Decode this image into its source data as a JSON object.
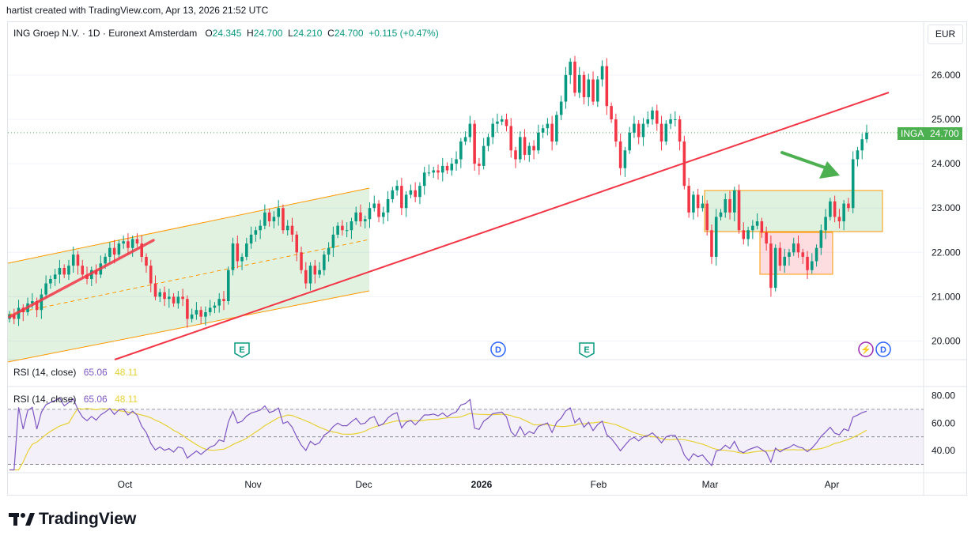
{
  "header": {
    "attribution": "hartist created with TradingView.com, Apr 13, 2026 21:52 UTC"
  },
  "legend": {
    "title": "ING Groep N.V. · 1D · Euronext Amsterdam",
    "o_label": "O",
    "o_value": "24.345",
    "h_label": "H",
    "h_value": "24.700",
    "l_label": "L",
    "l_value": "24.210",
    "c_label": "C",
    "c_value": "24.700",
    "change": "+0.115 (+0.47%)"
  },
  "currency": "EUR",
  "price_tag": {
    "ticker": "INGA",
    "price": "24.700"
  },
  "rsi_pane_collapsed": {
    "label": "RSI (14, close)",
    "rsi": "65.06",
    "ma": "48.11"
  },
  "rsi_pane": {
    "label": "RSI (14, close)",
    "rsi": "65.06",
    "ma": "48.11"
  },
  "brand": {
    "name": "TradingView"
  },
  "colors": {
    "up": "#089981",
    "down": "#f23645",
    "trendline": "#f23645",
    "channel": "#ff9800",
    "channel_fill": "#4caf50",
    "arrow": "#4caf50",
    "rsi": "#7e57c2",
    "rsi_ma": "#e6d234",
    "last_price": "#4caf50",
    "event_earnings": "#089981",
    "event_dividend": "#2962ff",
    "event_split": "#9c27b0"
  },
  "chart_data": [
    {
      "type": "candlestick",
      "title": "ING Groep N.V. · 1D · Euronext Amsterdam",
      "x_labels": [
        "Oct",
        "Nov",
        "Dec",
        "2026",
        "Feb",
        "Mar",
        "Apr"
      ],
      "y_ticks": [
        "20.000",
        "21.000",
        "22.000",
        "23.000",
        "24.000",
        "25.000",
        "26.000"
      ],
      "ylim": [
        19.6,
        27.1
      ],
      "last_price": 24.7,
      "series_close": [
        20.6,
        20.5,
        20.75,
        20.65,
        20.85,
        20.9,
        20.7,
        21.05,
        21.3,
        21.4,
        21.5,
        21.65,
        21.5,
        21.7,
        21.95,
        21.7,
        21.5,
        21.4,
        21.6,
        21.5,
        21.75,
        21.9,
        22.1,
        21.95,
        22.2,
        22.25,
        22.1,
        22.3,
        22.2,
        21.9,
        21.7,
        21.3,
        21.0,
        21.1,
        20.95,
        21.0,
        20.85,
        21.0,
        20.95,
        20.5,
        20.6,
        20.7,
        20.55,
        20.65,
        20.75,
        20.8,
        20.95,
        20.9,
        21.6,
        22.2,
        21.8,
        21.9,
        22.2,
        22.4,
        22.5,
        22.6,
        22.9,
        22.7,
        22.8,
        23.0,
        22.5,
        22.6,
        22.4,
        22.0,
        21.6,
        21.3,
        21.7,
        21.5,
        21.6,
        21.95,
        22.1,
        22.4,
        22.6,
        22.5,
        22.5,
        22.7,
        22.9,
        22.7,
        22.75,
        23.0,
        23.1,
        22.8,
        22.9,
        23.2,
        23.4,
        23.5,
        23.0,
        23.3,
        23.4,
        23.25,
        23.5,
        23.8,
        23.8,
        23.85,
        23.8,
        23.95,
        23.85,
        24.0,
        24.1,
        24.5,
        24.6,
        24.9,
        24.0,
        23.95,
        24.4,
        24.6,
        24.9,
        24.95,
        25.0,
        24.85,
        24.3,
        24.1,
        24.6,
        24.2,
        24.4,
        24.3,
        24.7,
        24.8,
        24.9,
        24.5,
        25.1,
        25.4,
        26.0,
        26.3,
        25.6,
        26.0,
        25.5,
        25.9,
        25.4,
        25.9,
        26.2,
        25.3,
        25.0,
        24.5,
        23.9,
        24.3,
        24.7,
        24.9,
        24.6,
        24.9,
        25.0,
        25.2,
        24.9,
        24.5,
        24.9,
        25.0,
        25.0,
        24.5,
        23.5,
        22.9,
        23.3,
        23.0,
        23.1,
        22.5,
        21.9,
        22.8,
        22.9,
        23.2,
        22.9,
        23.4,
        22.5,
        22.3,
        22.5,
        22.6,
        22.7,
        22.45,
        22.2,
        21.2,
        22.1,
        21.7,
        21.9,
        22.0,
        22.2,
        22.0,
        21.9,
        21.6,
        21.8,
        22.1,
        22.5,
        22.8,
        23.15,
        22.8,
        22.7,
        23.1,
        23.0,
        24.1,
        24.3,
        24.55,
        24.7
      ],
      "indicator_rsi": {
        "name": "RSI (14, close)",
        "last_rsi": 65.06,
        "last_ma": 48.11,
        "y_ticks": [
          "40.00",
          "60.00",
          "80.00"
        ],
        "bands": [
          30,
          50,
          70
        ],
        "ylim": [
          24,
          86
        ]
      },
      "annotations": {
        "events": [
          {
            "kind": "earnings",
            "label": "E",
            "date": "late Oct"
          },
          {
            "kind": "dividend",
            "label": "D",
            "date": "early Jan"
          },
          {
            "kind": "earnings",
            "label": "E",
            "date": "late Jan"
          },
          {
            "kind": "split",
            "label": "⚡",
            "date": "mid Apr"
          },
          {
            "kind": "dividend",
            "label": "D",
            "date": "mid Apr"
          }
        ]
      }
    }
  ]
}
